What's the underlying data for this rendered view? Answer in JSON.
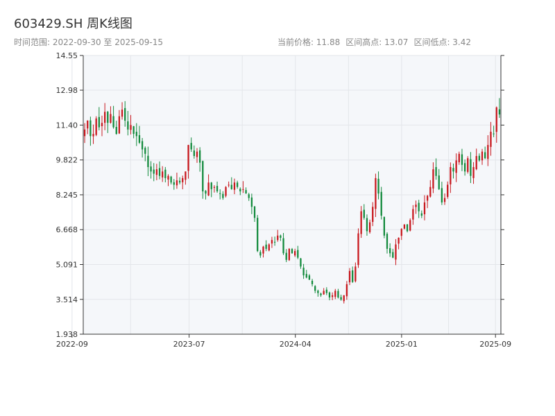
{
  "title": "603429.SH 周K线图",
  "subtitle": "时间范围: 2022-09-30 至 2025-09-15",
  "stats": {
    "current": "当前价格: 11.88",
    "high": "区间高点: 13.07",
    "low": "区间低点: 3.42"
  },
  "colors": {
    "up": "#c8171d",
    "down": "#128a3c",
    "plot_bg": "#f5f7fa",
    "grid": "#e3e6ea",
    "axis": "#333333"
  },
  "chart_data": {
    "type": "candlestick",
    "yticks": [
      "14.55",
      "12.98",
      "11.40",
      "9.822",
      "8.245",
      "6.668",
      "5.091",
      "3.514",
      "1.938"
    ],
    "ylim": [
      1.938,
      14.55
    ],
    "xticks": [
      "2022-09",
      "2023-07",
      "2024-04",
      "2025-01",
      "2025-09"
    ],
    "xrange": [
      "2022-09-30",
      "2025-09-15"
    ],
    "grid": true,
    "weekly_close": [
      11.2,
      11.6,
      10.9,
      11.0,
      11.7,
      11.3,
      11.5,
      12.0,
      11.5,
      11.9,
      11.3,
      11.0,
      11.8,
      12.1,
      11.6,
      11.2,
      11.4,
      11.0,
      10.9,
      10.6,
      10.3,
      10.1,
      9.5,
      9.3,
      9.2,
      9.4,
      9.1,
      9.3,
      9.0,
      9.1,
      8.8,
      8.7,
      8.9,
      8.8,
      9.0,
      9.3,
      10.5,
      10.3,
      10.0,
      10.2,
      9.7,
      8.4,
      8.3,
      8.8,
      8.5,
      8.6,
      8.4,
      8.3,
      8.1,
      8.6,
      8.7,
      8.5,
      8.8,
      8.6,
      8.4,
      8.5,
      8.3,
      8.1,
      7.7,
      7.2,
      5.7,
      5.5,
      5.9,
      5.8,
      6.0,
      6.2,
      6.1,
      6.4,
      6.3,
      5.6,
      5.3,
      5.8,
      5.6,
      5.7,
      5.4,
      5.0,
      4.6,
      4.5,
      4.4,
      4.2,
      3.9,
      3.8,
      3.7,
      3.9,
      3.8,
      3.6,
      3.7,
      3.9,
      3.6,
      3.5,
      3.7,
      4.2,
      4.8,
      4.3,
      5.0,
      6.5,
      7.5,
      7.2,
      6.6,
      7.0,
      7.7,
      9.0,
      8.3,
      7.3,
      6.4,
      5.8,
      5.6,
      5.4,
      6.0,
      6.3,
      6.7,
      6.9,
      6.6,
      7.1,
      7.6,
      7.8,
      7.5,
      7.3,
      7.9,
      8.2,
      8.6,
      9.4,
      9.1,
      8.5,
      7.9,
      8.1,
      8.7,
      9.5,
      9.3,
      9.8,
      10.1,
      9.6,
      9.3,
      9.9,
      9.1,
      9.5,
      10.0,
      9.8,
      10.2,
      9.9,
      10.5,
      11.1,
      11.0,
      12.2,
      11.88
    ]
  }
}
